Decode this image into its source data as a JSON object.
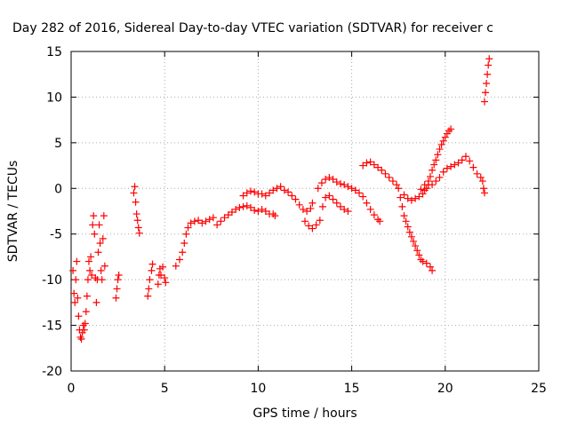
{
  "chart_data": {
    "type": "scatter",
    "title": "Day 282 of 2016, Sidereal Day-to-day VTEC variation (SDTVAR) for receiver c",
    "xlabel": "GPS time / hours",
    "ylabel": "SDTVAR / TECUs",
    "xlim": [
      0,
      25
    ],
    "ylim": [
      -20,
      15
    ],
    "xticks": [
      0,
      5,
      10,
      15,
      20,
      25
    ],
    "yticks": [
      -20,
      -15,
      -10,
      -5,
      0,
      5,
      10,
      15
    ],
    "grid": true,
    "marker": "+",
    "color": "#ff0000",
    "series": [
      {
        "points": [
          [
            0.1,
            -9
          ],
          [
            0.15,
            -11.5
          ],
          [
            0.2,
            -12.5
          ],
          [
            0.25,
            -10
          ],
          [
            0.3,
            -8
          ],
          [
            0.35,
            -12
          ],
          [
            0.4,
            -14
          ],
          [
            0.45,
            -15.5
          ],
          [
            0.5,
            -16.3
          ],
          [
            0.55,
            -16.5
          ],
          [
            0.6,
            -15.8
          ],
          [
            0.65,
            -15
          ],
          [
            0.7,
            -15.5
          ],
          [
            0.75,
            -14.8
          ],
          [
            0.8,
            -13.5
          ],
          [
            0.85,
            -11.8
          ],
          [
            0.9,
            -10
          ],
          [
            0.95,
            -8
          ],
          [
            1.0,
            -9
          ],
          [
            1.05,
            -7.5
          ],
          [
            1.1,
            -9.5
          ],
          [
            1.15,
            -4
          ],
          [
            1.2,
            -3
          ],
          [
            1.25,
            -5
          ],
          [
            1.3,
            -9.8
          ],
          [
            1.35,
            -12.5
          ],
          [
            1.4,
            -10
          ],
          [
            1.45,
            -7
          ],
          [
            1.5,
            -4
          ],
          [
            1.55,
            -6
          ],
          [
            1.6,
            -9
          ],
          [
            1.65,
            -10
          ],
          [
            1.7,
            -5.5
          ],
          [
            1.75,
            -3
          ],
          [
            1.8,
            -8.5
          ],
          [
            2.4,
            -12
          ],
          [
            2.45,
            -11
          ],
          [
            2.5,
            -10
          ],
          [
            2.55,
            -9.5
          ],
          [
            3.35,
            -0.5
          ],
          [
            3.4,
            0.2
          ],
          [
            3.45,
            -1.5
          ],
          [
            3.5,
            -2.8
          ],
          [
            3.55,
            -3.5
          ],
          [
            3.6,
            -4.3
          ],
          [
            3.65,
            -4.9
          ],
          [
            4.1,
            -11.8
          ],
          [
            4.15,
            -11
          ],
          [
            4.2,
            -10
          ],
          [
            4.3,
            -9
          ],
          [
            4.35,
            -8.3
          ],
          [
            4.65,
            -10.5
          ],
          [
            4.7,
            -9.5
          ],
          [
            4.75,
            -8.8
          ],
          [
            4.8,
            -9.5
          ],
          [
            4.9,
            -8.6
          ],
          [
            5.0,
            -9.8
          ],
          [
            5.05,
            -10.3
          ],
          [
            5.6,
            -8.5
          ],
          [
            5.8,
            -7.8
          ],
          [
            5.95,
            -7
          ],
          [
            6.05,
            -6
          ],
          [
            6.15,
            -5
          ],
          [
            6.25,
            -4.3
          ],
          [
            6.4,
            -3.8
          ],
          [
            6.6,
            -3.6
          ],
          [
            6.8,
            -3.5
          ],
          [
            7.0,
            -3.8
          ],
          [
            7.2,
            -3.6
          ],
          [
            7.4,
            -3.4
          ],
          [
            7.6,
            -3.2
          ],
          [
            7.8,
            -4.0
          ],
          [
            8.0,
            -3.6
          ],
          [
            8.2,
            -3.2
          ],
          [
            8.4,
            -2.9
          ],
          [
            8.6,
            -2.6
          ],
          [
            8.8,
            -2.3
          ],
          [
            9.0,
            -2.1
          ],
          [
            9.2,
            -2.0
          ],
          [
            9.4,
            -1.9
          ],
          [
            9.6,
            -2.1
          ],
          [
            9.8,
            -2.4
          ],
          [
            10.0,
            -2.5
          ],
          [
            10.2,
            -2.3
          ],
          [
            10.4,
            -2.5
          ],
          [
            10.6,
            -2.8
          ],
          [
            10.8,
            -2.8
          ],
          [
            10.9,
            -3.0
          ],
          [
            9.2,
            -0.8
          ],
          [
            9.4,
            -0.5
          ],
          [
            9.6,
            -0.3
          ],
          [
            9.8,
            -0.4
          ],
          [
            10.0,
            -0.6
          ],
          [
            10.2,
            -0.6
          ],
          [
            10.4,
            -0.8
          ],
          [
            10.6,
            -0.5
          ],
          [
            10.8,
            -0.2
          ],
          [
            11.0,
            0.0
          ],
          [
            11.2,
            0.2
          ],
          [
            11.4,
            -0.2
          ],
          [
            11.6,
            -0.4
          ],
          [
            11.8,
            -0.8
          ],
          [
            12.0,
            -1.2
          ],
          [
            12.2,
            -1.8
          ],
          [
            12.4,
            -2.3
          ],
          [
            12.6,
            -2.5
          ],
          [
            12.8,
            -2.2
          ],
          [
            12.9,
            -1.6
          ],
          [
            12.5,
            -3.6
          ],
          [
            12.7,
            -4.1
          ],
          [
            12.9,
            -4.4
          ],
          [
            13.1,
            -4.0
          ],
          [
            13.3,
            -3.5
          ],
          [
            13.45,
            -2.0
          ],
          [
            13.6,
            -1.0
          ],
          [
            13.8,
            -0.8
          ],
          [
            14.0,
            -1.2
          ],
          [
            14.2,
            -1.6
          ],
          [
            14.4,
            -2.0
          ],
          [
            14.6,
            -2.3
          ],
          [
            14.8,
            -2.5
          ],
          [
            13.2,
            0.0
          ],
          [
            13.4,
            0.6
          ],
          [
            13.6,
            1.0
          ],
          [
            13.8,
            1.2
          ],
          [
            14.0,
            1.0
          ],
          [
            14.2,
            0.7
          ],
          [
            14.4,
            0.5
          ],
          [
            14.6,
            0.4
          ],
          [
            14.8,
            0.2
          ],
          [
            15.0,
            0.0
          ],
          [
            15.2,
            -0.2
          ],
          [
            15.4,
            -0.5
          ],
          [
            15.6,
            -0.9
          ],
          [
            15.8,
            -1.6
          ],
          [
            16.0,
            -2.3
          ],
          [
            16.2,
            -2.9
          ],
          [
            16.4,
            -3.4
          ],
          [
            16.5,
            -3.6
          ],
          [
            15.6,
            2.5
          ],
          [
            15.8,
            2.8
          ],
          [
            16.0,
            2.9
          ],
          [
            16.2,
            2.6
          ],
          [
            16.4,
            2.3
          ],
          [
            16.6,
            2.0
          ],
          [
            16.8,
            1.6
          ],
          [
            17.0,
            1.2
          ],
          [
            17.2,
            0.8
          ],
          [
            17.4,
            0.4
          ],
          [
            17.5,
            0.0
          ],
          [
            17.6,
            -1.0
          ],
          [
            17.7,
            -2.0
          ],
          [
            17.8,
            -3.0
          ],
          [
            17.9,
            -3.6
          ],
          [
            18.0,
            -4.2
          ],
          [
            18.1,
            -4.8
          ],
          [
            18.2,
            -5.3
          ],
          [
            18.3,
            -5.8
          ],
          [
            18.4,
            -6.3
          ],
          [
            18.5,
            -6.8
          ],
          [
            18.6,
            -7.3
          ],
          [
            18.7,
            -7.8
          ],
          [
            18.8,
            -8.0
          ],
          [
            19.0,
            -8.2
          ],
          [
            19.2,
            -8.6
          ],
          [
            19.3,
            -9.0
          ],
          [
            17.8,
            -0.7
          ],
          [
            18.0,
            -1.1
          ],
          [
            18.2,
            -1.3
          ],
          [
            18.4,
            -1.1
          ],
          [
            18.6,
            -0.9
          ],
          [
            18.8,
            -0.6
          ],
          [
            18.9,
            -0.2
          ],
          [
            19.0,
            0.0
          ],
          [
            19.1,
            0.4
          ],
          [
            19.2,
            1.3
          ],
          [
            19.3,
            2.0
          ],
          [
            19.4,
            2.6
          ],
          [
            19.5,
            3.1
          ],
          [
            19.6,
            3.7
          ],
          [
            19.7,
            4.3
          ],
          [
            19.8,
            4.8
          ],
          [
            19.9,
            5.2
          ],
          [
            20.0,
            5.6
          ],
          [
            20.1,
            6.0
          ],
          [
            20.2,
            6.3
          ],
          [
            20.3,
            6.5
          ],
          [
            18.7,
            -0.1
          ],
          [
            18.9,
            0.4
          ],
          [
            19.1,
            0.8
          ],
          [
            19.3,
            0.4
          ],
          [
            19.5,
            0.8
          ],
          [
            19.7,
            1.2
          ],
          [
            19.9,
            1.8
          ],
          [
            20.1,
            2.2
          ],
          [
            20.3,
            2.4
          ],
          [
            20.5,
            2.6
          ],
          [
            20.7,
            2.8
          ],
          [
            20.9,
            3.1
          ],
          [
            21.1,
            3.5
          ],
          [
            21.3,
            3.0
          ],
          [
            21.5,
            2.3
          ],
          [
            21.7,
            1.6
          ],
          [
            21.9,
            1.2
          ],
          [
            22.0,
            0.8
          ],
          [
            22.05,
            0.0
          ],
          [
            22.1,
            -0.5
          ],
          [
            22.1,
            9.5
          ],
          [
            22.15,
            10.5
          ],
          [
            22.2,
            11.5
          ],
          [
            22.25,
            12.5
          ],
          [
            22.3,
            13.5
          ],
          [
            22.35,
            14.2
          ]
        ]
      }
    ]
  }
}
